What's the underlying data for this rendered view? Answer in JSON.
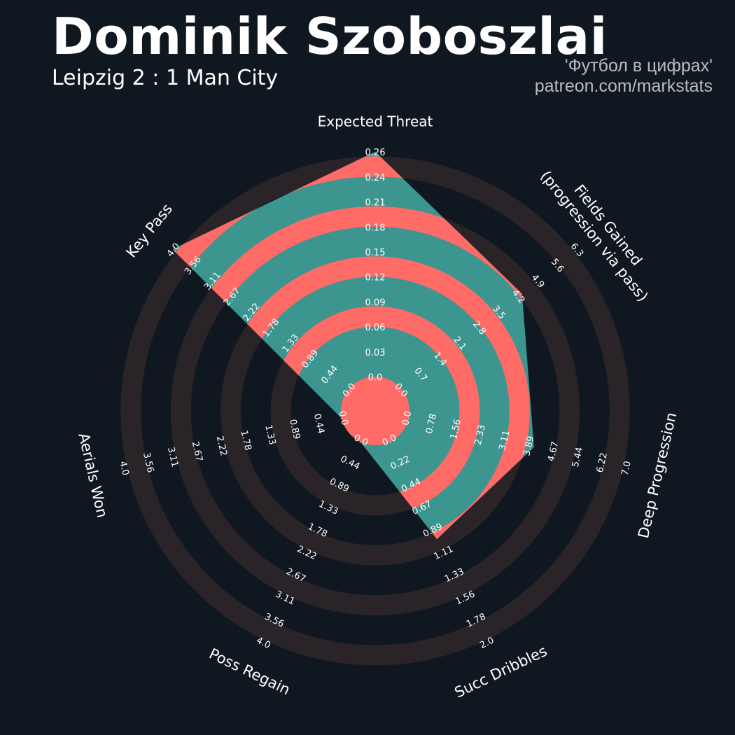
{
  "header": {
    "title": "Dominik Szoboszlai",
    "subtitle": "Leipzig 2 : 1 Man City",
    "credit_line1": "'Футбол в цифрах'",
    "credit_line2": "patreon.com/markstats"
  },
  "colors": {
    "background": "#0f1820",
    "ring_band": "#2a2328",
    "ring_highlight": "#ff6b66",
    "fill": "#3d958f",
    "label_text": "#ffffff"
  },
  "chart_data": {
    "type": "radar",
    "params": [
      {
        "label": "Expected Threat",
        "value": 0.26,
        "range": [
          0.0,
          0.26
        ],
        "ticks": [
          "0.0",
          "0.03",
          "0.06",
          "0.09",
          "0.12",
          "0.15",
          "0.18",
          "0.21",
          "0.24",
          "0.26"
        ]
      },
      {
        "label": "Fields Gained\n(progression via pass)",
        "value": 4.3,
        "range": [
          0.0,
          6.3
        ],
        "ticks": [
          "0.0",
          "0.7",
          "1.4",
          "2.1",
          "2.8",
          "3.5",
          "4.2",
          "4.9",
          "5.6",
          "6.3"
        ]
      },
      {
        "label": "Deep Progression",
        "value": 4.0,
        "range": [
          0.0,
          7.0
        ],
        "ticks": [
          "0.0",
          "0.78",
          "1.56",
          "2.33",
          "3.11",
          "3.89",
          "4.67",
          "5.44",
          "6.22",
          "7.0"
        ]
      },
      {
        "label": "Succ Dribbles",
        "value": 0.96,
        "range": [
          0.0,
          2.0
        ],
        "ticks": [
          "0.0",
          "0.22",
          "0.44",
          "0.67",
          "0.89",
          "1.11",
          "1.33",
          "1.56",
          "1.78",
          "2.0"
        ]
      },
      {
        "label": "Poss Regain",
        "value": 0.0,
        "range": [
          0.0,
          4.0
        ],
        "ticks": [
          "0.0",
          "0.44",
          "0.89",
          "1.33",
          "1.78",
          "2.22",
          "2.67",
          "3.11",
          "3.56",
          "4.0"
        ]
      },
      {
        "label": "Aerials Won",
        "value": 0.0,
        "range": [
          0.0,
          4.0
        ],
        "ticks": [
          "0.0",
          "0.44",
          "0.89",
          "1.33",
          "1.78",
          "2.22",
          "2.67",
          "3.11",
          "3.56",
          "4.0"
        ]
      },
      {
        "label": "Key Pass",
        "value": 4.0,
        "range": [
          0.0,
          4.0
        ],
        "ticks": [
          "0.0",
          "0.44",
          "0.89",
          "1.33",
          "1.78",
          "2.22",
          "2.67",
          "3.11",
          "3.56",
          "4.0"
        ]
      }
    ]
  }
}
